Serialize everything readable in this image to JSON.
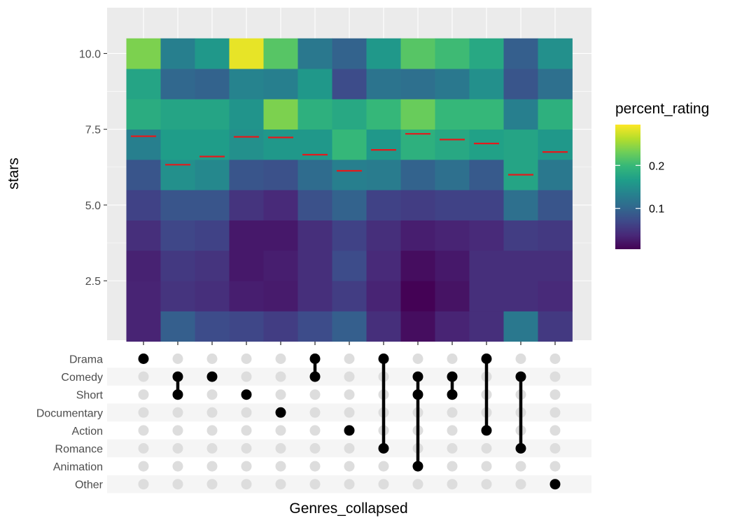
{
  "chart_data": {
    "type": "heatmap",
    "subtype": "upset-heatmap",
    "xlabel": "Genres_collapsed",
    "ylabel": "stars",
    "ylim": [
      0.5,
      10.5
    ],
    "y_ticks": [
      2.5,
      5.0,
      7.5,
      10.0
    ],
    "y_tick_labels": [
      "2.5",
      "5.0",
      "7.5",
      "10.0"
    ],
    "star_levels": [
      1,
      2,
      3,
      4,
      5,
      6,
      7,
      8,
      9,
      10
    ],
    "genres": [
      "Drama",
      "Comedy",
      "Short",
      "Documentary",
      "Action",
      "Romance",
      "Animation",
      "Other"
    ],
    "combinations": [
      [
        "Drama"
      ],
      [
        "Short",
        "Comedy"
      ],
      [
        "Comedy"
      ],
      [
        "Short"
      ],
      [
        "Documentary"
      ],
      [
        "Drama",
        "Comedy"
      ],
      [
        "Action"
      ],
      [
        "Drama",
        "Romance"
      ],
      [
        "Comedy",
        "Short",
        "Animation"
      ],
      [
        "Comedy",
        "Short"
      ],
      [
        "Drama",
        "Action"
      ],
      [
        "Comedy",
        "Romance"
      ],
      [
        "Other"
      ]
    ],
    "percent_rating": [
      [
        0.03,
        0.03,
        0.028,
        0.04,
        0.06,
        0.08,
        0.13,
        0.185,
        0.175,
        0.24
      ],
      [
        0.09,
        0.045,
        0.05,
        0.065,
        0.08,
        0.15,
        0.165,
        0.175,
        0.1,
        0.13
      ],
      [
        0.07,
        0.04,
        0.045,
        0.06,
        0.08,
        0.14,
        0.165,
        0.175,
        0.095,
        0.16
      ],
      [
        0.065,
        0.025,
        0.02,
        0.02,
        0.045,
        0.08,
        0.15,
        0.155,
        0.135,
        0.29
      ],
      [
        0.055,
        0.022,
        0.025,
        0.02,
        0.035,
        0.075,
        0.16,
        0.24,
        0.13,
        0.22
      ],
      [
        0.07,
        0.04,
        0.04,
        0.04,
        0.075,
        0.105,
        0.16,
        0.19,
        0.16,
        0.12
      ],
      [
        0.09,
        0.055,
        0.07,
        0.06,
        0.095,
        0.13,
        0.2,
        0.18,
        0.07,
        0.095
      ],
      [
        0.04,
        0.03,
        0.035,
        0.04,
        0.06,
        0.125,
        0.16,
        0.2,
        0.115,
        0.16
      ],
      [
        0.01,
        0.001,
        0.01,
        0.025,
        0.055,
        0.095,
        0.19,
        0.23,
        0.11,
        0.22
      ],
      [
        0.03,
        0.015,
        0.02,
        0.03,
        0.06,
        0.11,
        0.18,
        0.2,
        0.12,
        0.205
      ],
      [
        0.04,
        0.04,
        0.04,
        0.035,
        0.06,
        0.085,
        0.17,
        0.2,
        0.15,
        0.18
      ],
      [
        0.12,
        0.04,
        0.04,
        0.055,
        0.11,
        0.175,
        0.175,
        0.13,
        0.08,
        0.09
      ],
      [
        0.05,
        0.035,
        0.04,
        0.05,
        0.08,
        0.12,
        0.16,
        0.19,
        0.11,
        0.15
      ]
    ],
    "mean_stars": [
      7.27,
      6.33,
      6.6,
      7.25,
      7.23,
      6.66,
      6.13,
      6.82,
      7.35,
      7.16,
      7.03,
      6.0,
      6.75
    ],
    "mean_line_color": "#e31a1c",
    "legend": {
      "title": "percent_rating",
      "position": "right",
      "ticks": [
        0.1,
        0.2
      ],
      "tick_labels": [
        "0.1",
        "0.2"
      ],
      "range": [
        0.0,
        0.3
      ]
    },
    "colormap": "viridis",
    "colormap_stops": [
      "#440154",
      "#482878",
      "#3e4989",
      "#31688e",
      "#26828e",
      "#1f9e89",
      "#35b779",
      "#6ece58",
      "#b5de2b",
      "#fde725"
    ]
  }
}
